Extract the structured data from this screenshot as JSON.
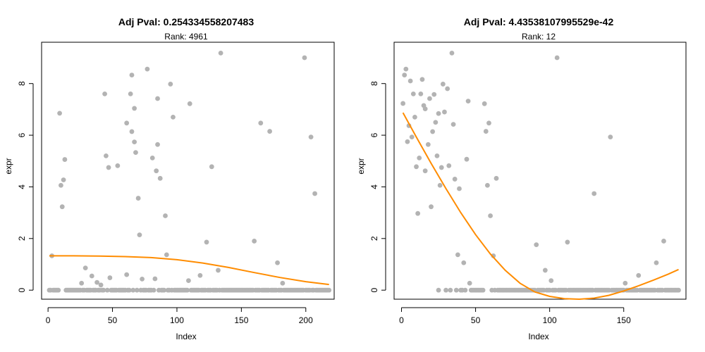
{
  "chart_data": [
    {
      "type": "scatter",
      "title": "Adj Pval: 0.254334558207483",
      "subtitle": "Rank: 4961",
      "xlabel": "Index",
      "ylabel": "expr",
      "xlim": [
        -5,
        222
      ],
      "ylim": [
        -0.35,
        9.6
      ],
      "xticks": [
        0,
        50,
        100,
        150,
        200
      ],
      "yticks": [
        0,
        2,
        4,
        6,
        8
      ],
      "point_color": "#b3b3b3",
      "line_color": "#ff8c00",
      "grid": false,
      "points": [
        [
          3,
          1.33
        ],
        [
          9,
          6.85
        ],
        [
          10,
          4.06
        ],
        [
          11,
          3.23
        ],
        [
          12,
          4.27
        ],
        [
          13,
          5.06
        ],
        [
          26,
          0.27
        ],
        [
          29,
          0.86
        ],
        [
          34,
          0.55
        ],
        [
          38,
          0.3
        ],
        [
          41,
          0.2
        ],
        [
          44,
          7.6
        ],
        [
          45,
          5.2
        ],
        [
          47,
          4.75
        ],
        [
          48,
          0.48
        ],
        [
          54,
          4.82
        ],
        [
          61,
          0.6
        ],
        [
          61,
          6.47
        ],
        [
          64,
          7.6
        ],
        [
          65,
          8.33
        ],
        [
          65,
          6.14
        ],
        [
          67,
          7.04
        ],
        [
          67,
          5.74
        ],
        [
          68,
          5.33
        ],
        [
          70,
          3.56
        ],
        [
          71,
          2.14
        ],
        [
          73,
          0.43
        ],
        [
          77,
          8.56
        ],
        [
          81,
          5.12
        ],
        [
          83,
          0.44
        ],
        [
          84,
          4.62
        ],
        [
          85,
          7.42
        ],
        [
          85,
          5.64
        ],
        [
          87,
          4.33
        ],
        [
          91,
          2.88
        ],
        [
          92,
          1.37
        ],
        [
          95,
          7.98
        ],
        [
          97,
          6.7
        ],
        [
          109,
          0.37
        ],
        [
          110,
          7.22
        ],
        [
          118,
          0.57
        ],
        [
          123,
          1.86
        ],
        [
          127,
          4.78
        ],
        [
          132,
          0.77
        ],
        [
          134,
          9.18
        ],
        [
          160,
          1.9
        ],
        [
          165,
          6.47
        ],
        [
          172,
          6.15
        ],
        [
          178,
          1.06
        ],
        [
          182,
          0.27
        ],
        [
          199,
          9.0
        ],
        [
          204,
          5.93
        ],
        [
          207,
          3.74
        ]
      ],
      "zero_points": [
        1,
        2,
        4,
        5,
        6,
        7,
        8,
        14,
        15,
        16,
        17,
        18,
        19,
        20,
        21,
        22,
        23,
        24,
        25,
        27,
        28,
        30,
        31,
        32,
        33,
        35,
        36,
        37,
        39,
        40,
        42,
        43,
        46,
        49,
        50,
        51,
        52,
        53,
        55,
        56,
        57,
        58,
        59,
        60,
        62,
        63,
        66,
        69,
        72,
        74,
        75,
        76,
        78,
        79,
        80,
        82,
        86,
        88,
        89,
        90,
        93,
        94,
        96,
        98,
        99,
        100,
        101,
        102,
        103,
        104,
        105,
        106,
        107,
        108,
        111,
        112,
        113,
        114,
        115,
        116,
        117,
        119,
        120,
        121,
        122,
        124,
        125,
        126,
        128,
        129,
        130,
        131,
        133,
        135,
        136,
        137,
        138,
        139,
        140,
        141,
        142,
        143,
        144,
        145,
        146,
        147,
        148,
        149,
        150,
        151,
        152,
        153,
        154,
        155,
        156,
        157,
        158,
        159,
        161,
        162,
        163,
        164,
        166,
        167,
        168,
        169,
        170,
        171,
        173,
        174,
        175,
        176,
        177,
        179,
        180,
        181,
        183,
        184,
        185,
        186,
        187,
        188,
        189,
        190,
        191,
        192,
        193,
        194,
        195,
        196,
        197,
        198,
        200,
        201,
        202,
        203,
        205,
        206,
        208,
        209,
        210,
        211,
        212,
        213,
        214,
        215,
        216,
        217,
        218
      ],
      "fit_curve": [
        [
          1,
          1.33
        ],
        [
          20,
          1.33
        ],
        [
          40,
          1.32
        ],
        [
          60,
          1.3
        ],
        [
          80,
          1.26
        ],
        [
          100,
          1.18
        ],
        [
          120,
          1.05
        ],
        [
          140,
          0.88
        ],
        [
          160,
          0.68
        ],
        [
          180,
          0.49
        ],
        [
          200,
          0.33
        ],
        [
          218,
          0.22
        ]
      ]
    },
    {
      "type": "scatter",
      "title": "Adj Pval: 4.43538107995529e-42",
      "subtitle": "Rank: 12",
      "xlabel": "Index",
      "ylabel": "expr",
      "xlim": [
        -5,
        192
      ],
      "ylim": [
        -0.35,
        9.6
      ],
      "xticks": [
        0,
        50,
        100,
        150
      ],
      "yticks": [
        0,
        2,
        4,
        6,
        8
      ],
      "point_color": "#b3b3b3",
      "line_color": "#ff8c00",
      "grid": false,
      "points": [
        [
          1,
          7.23
        ],
        [
          2,
          8.33
        ],
        [
          3,
          8.56
        ],
        [
          4,
          5.75
        ],
        [
          5,
          6.37
        ],
        [
          6,
          8.1
        ],
        [
          7,
          5.93
        ],
        [
          8,
          7.6
        ],
        [
          9,
          6.7
        ],
        [
          10,
          4.78
        ],
        [
          11,
          2.97
        ],
        [
          12,
          5.12
        ],
        [
          13,
          7.6
        ],
        [
          14,
          8.16
        ],
        [
          15,
          7.15
        ],
        [
          16,
          4.62
        ],
        [
          16,
          7.02
        ],
        [
          18,
          5.64
        ],
        [
          19,
          7.42
        ],
        [
          20,
          3.23
        ],
        [
          21,
          6.14
        ],
        [
          22,
          7.58
        ],
        [
          23,
          6.5
        ],
        [
          24,
          5.2
        ],
        [
          25,
          6.84
        ],
        [
          26,
          4.06
        ],
        [
          27,
          4.75
        ],
        [
          28,
          7.98
        ],
        [
          29,
          6.9
        ],
        [
          31,
          7.8
        ],
        [
          32,
          4.82
        ],
        [
          34,
          9.18
        ],
        [
          35,
          6.42
        ],
        [
          36,
          4.3
        ],
        [
          38,
          1.37
        ],
        [
          39,
          3.93
        ],
        [
          42,
          1.06
        ],
        [
          44,
          5.07
        ],
        [
          45,
          7.32
        ],
        [
          46,
          0.27
        ],
        [
          56,
          7.22
        ],
        [
          57,
          6.15
        ],
        [
          58,
          4.06
        ],
        [
          59,
          6.47
        ],
        [
          60,
          2.88
        ],
        [
          62,
          1.33
        ],
        [
          64,
          4.33
        ],
        [
          91,
          1.76
        ],
        [
          97,
          0.77
        ],
        [
          101,
          0.37
        ],
        [
          105,
          9.0
        ],
        [
          112,
          1.86
        ],
        [
          130,
          3.74
        ],
        [
          141,
          5.93
        ],
        [
          151,
          0.27
        ],
        [
          160,
          0.57
        ],
        [
          172,
          1.06
        ],
        [
          177,
          1.9
        ]
      ],
      "zero_points": [
        25,
        30,
        33,
        37,
        40,
        41,
        43,
        47,
        48,
        49,
        50,
        51,
        52,
        53,
        54,
        55,
        61,
        63,
        65,
        66,
        67,
        68,
        69,
        70,
        71,
        72,
        73,
        74,
        75,
        76,
        77,
        78,
        79,
        80,
        81,
        82,
        83,
        84,
        85,
        86,
        87,
        88,
        89,
        90,
        92,
        93,
        94,
        95,
        96,
        98,
        99,
        100,
        102,
        103,
        104,
        106,
        107,
        108,
        109,
        110,
        111,
        113,
        114,
        115,
        116,
        117,
        118,
        119,
        120,
        121,
        122,
        123,
        124,
        125,
        126,
        127,
        128,
        129,
        131,
        132,
        133,
        134,
        135,
        136,
        137,
        138,
        139,
        140,
        142,
        143,
        144,
        145,
        146,
        147,
        148,
        149,
        150,
        152,
        153,
        154,
        155,
        156,
        157,
        158,
        159,
        161,
        162,
        163,
        164,
        165,
        166,
        167,
        168,
        169,
        170,
        171,
        173,
        174,
        175,
        176,
        178,
        179,
        180,
        181,
        182,
        183,
        184,
        185,
        186,
        187
      ],
      "fit_curve": [
        [
          1,
          6.87
        ],
        [
          10,
          5.93
        ],
        [
          20,
          4.91
        ],
        [
          30,
          3.93
        ],
        [
          40,
          3.0
        ],
        [
          50,
          2.15
        ],
        [
          60,
          1.4
        ],
        [
          70,
          0.77
        ],
        [
          80,
          0.27
        ],
        [
          90,
          -0.07
        ],
        [
          100,
          -0.24
        ],
        [
          110,
          -0.33
        ],
        [
          120,
          -0.35
        ],
        [
          130,
          -0.31
        ],
        [
          140,
          -0.2
        ],
        [
          150,
          -0.03
        ],
        [
          160,
          0.17
        ],
        [
          170,
          0.39
        ],
        [
          180,
          0.62
        ],
        [
          187,
          0.8
        ]
      ]
    }
  ]
}
